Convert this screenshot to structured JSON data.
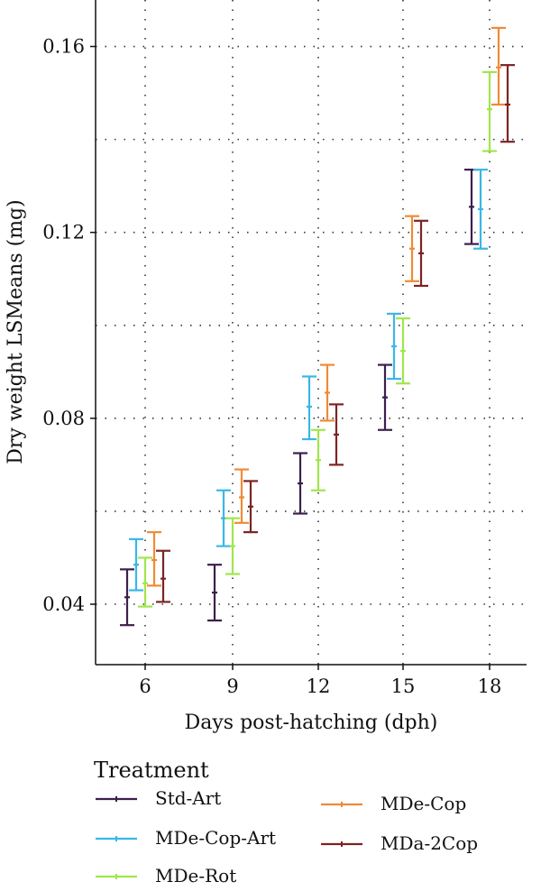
{
  "chart_data": {
    "type": "errorbar",
    "xlabel": "Days post-hatching (dph)",
    "ylabel": "Dry weight LSMeans (mg)",
    "categories": [
      "6",
      "9",
      "12",
      "15",
      "18"
    ],
    "yticks": [
      "0.04",
      "0.08",
      "0.12",
      "0.16"
    ],
    "ylim": [
      0.027,
      0.17
    ],
    "grid": true,
    "legend": {
      "title": "Treatment",
      "placement": "bottom"
    },
    "series": [
      {
        "name": "Std-Art",
        "color": "#3b1f4d",
        "mean": [
          0.0415,
          0.0425,
          0.066,
          0.0845,
          0.1255
        ],
        "lower": [
          0.0355,
          0.0365,
          0.0595,
          0.0775,
          0.1175
        ],
        "upper": [
          0.0475,
          0.0485,
          0.0725,
          0.0915,
          0.1335
        ]
      },
      {
        "name": "MDe-Cop-Art",
        "color": "#3ab7e6",
        "mean": [
          0.0485,
          0.0585,
          0.0825,
          0.0955,
          0.125
        ],
        "lower": [
          0.043,
          0.0525,
          0.0755,
          0.0885,
          0.1165
        ],
        "upper": [
          0.054,
          0.0645,
          0.089,
          0.1025,
          0.1335
        ]
      },
      {
        "name": "MDe-Rot",
        "color": "#a0e64b",
        "mean": [
          0.0445,
          0.0525,
          0.071,
          0.0945,
          0.1465
        ],
        "lower": [
          0.0395,
          0.0465,
          0.0645,
          0.0875,
          0.1375
        ],
        "upper": [
          0.05,
          0.0585,
          0.0775,
          0.1015,
          0.1545
        ]
      },
      {
        "name": "MDe-Cop",
        "color": "#f08a35",
        "mean": [
          0.0495,
          0.063,
          0.0855,
          0.1165,
          0.1555
        ],
        "lower": [
          0.044,
          0.0575,
          0.0795,
          0.1095,
          0.1475
        ],
        "upper": [
          0.0555,
          0.069,
          0.0915,
          0.1235,
          0.164
        ]
      },
      {
        "name": "MDa-2Cop",
        "color": "#7d2323",
        "mean": [
          0.0455,
          0.061,
          0.0765,
          0.1155,
          0.1475
        ],
        "lower": [
          0.0405,
          0.0555,
          0.07,
          0.1085,
          0.1395
        ],
        "upper": [
          0.0515,
          0.0665,
          0.083,
          0.1225,
          0.156
        ]
      }
    ]
  }
}
